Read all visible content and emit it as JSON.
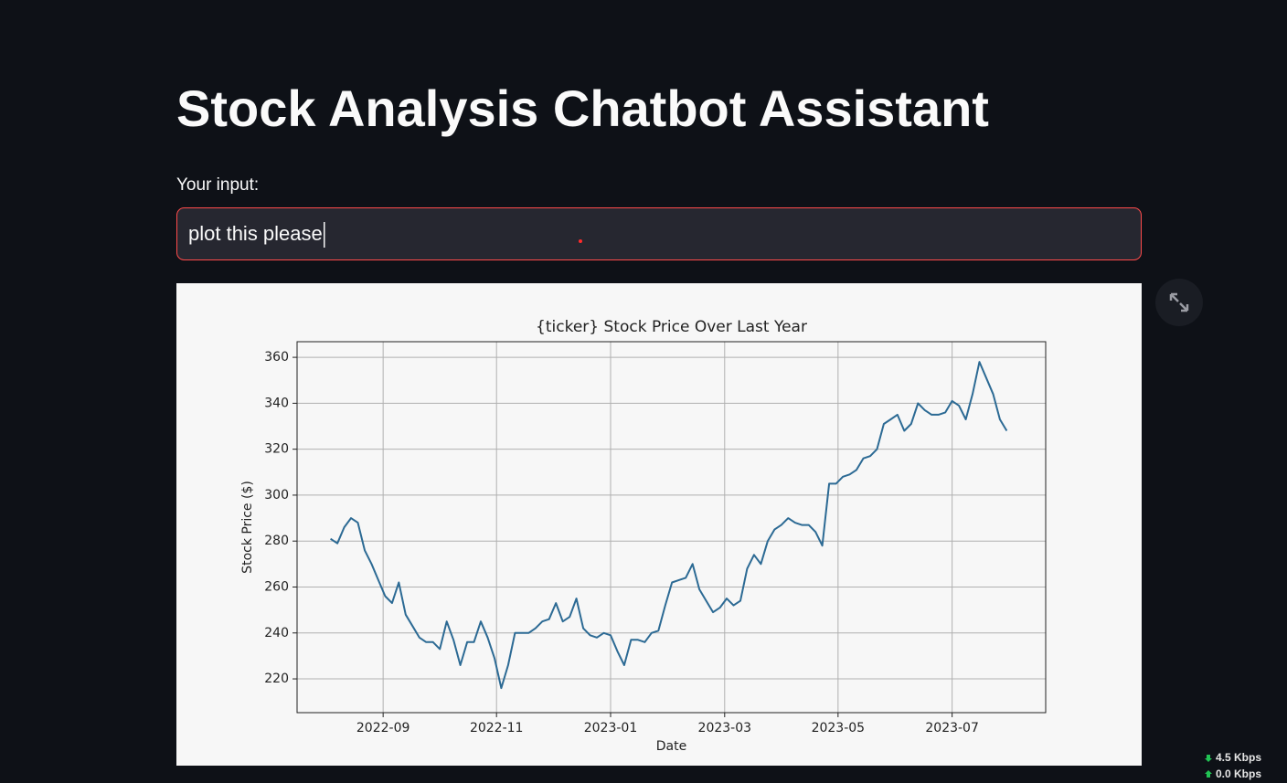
{
  "header": {
    "title": "Stock Analysis Chatbot Assistant"
  },
  "input": {
    "label": "Your input:",
    "value": "plot this please"
  },
  "network": {
    "down": "4.5 Kbps",
    "up": "0.0 Kbps"
  },
  "chart_data": {
    "type": "line",
    "title": "{ticker} Stock Price Over Last Year",
    "x_label": "Date",
    "y_label": "Stock Price ($)",
    "x": [
      2022.59,
      2022.6,
      2022.61,
      2022.62,
      2022.63,
      2022.64,
      2022.65,
      2022.66,
      2022.67,
      2022.68,
      2022.69,
      2022.7,
      2022.71,
      2022.72,
      2022.73,
      2022.74,
      2022.75,
      2022.76,
      2022.77,
      2022.78,
      2022.79,
      2022.8,
      2022.81,
      2022.82,
      2022.83,
      2022.84,
      2022.85,
      2022.86,
      2022.87,
      2022.88,
      2022.89,
      2022.9,
      2022.91,
      2022.92,
      2022.93,
      2022.94,
      2022.95,
      2022.96,
      2022.97,
      2022.98,
      2022.99,
      2023.0,
      2023.01,
      2023.02,
      2023.03,
      2023.04,
      2023.05,
      2023.06,
      2023.07,
      2023.08,
      2023.09,
      2023.1,
      2023.11,
      2023.12,
      2023.13,
      2023.14,
      2023.15,
      2023.16,
      2023.17,
      2023.18,
      2023.19,
      2023.2,
      2023.21,
      2023.22,
      2023.23,
      2023.24,
      2023.25,
      2023.26,
      2023.27,
      2023.28,
      2023.29,
      2023.3,
      2023.31,
      2023.32,
      2023.33,
      2023.34,
      2023.35,
      2023.36,
      2023.37,
      2023.38,
      2023.39,
      2023.4,
      2023.41,
      2023.42,
      2023.43,
      2023.44,
      2023.45,
      2023.46,
      2023.47,
      2023.48,
      2023.49,
      2023.5,
      2023.51,
      2023.52,
      2023.53,
      2023.54,
      2023.55,
      2023.56,
      2023.57,
      2023.58
    ],
    "values": [
      281,
      279,
      286,
      290,
      288,
      276,
      270,
      263,
      256,
      253,
      262,
      248,
      243,
      238,
      236,
      236,
      233,
      245,
      237,
      226,
      236,
      236,
      245,
      238,
      229,
      216,
      226,
      240,
      240,
      240,
      242,
      245,
      246,
      253,
      245,
      247,
      255,
      242,
      239,
      238,
      240,
      239,
      232,
      226,
      237,
      237,
      236,
      240,
      241,
      252,
      262,
      263,
      264,
      270,
      259,
      254,
      249,
      251,
      255,
      252,
      254,
      268,
      274,
      270,
      280,
      285,
      287,
      290,
      288,
      287,
      287,
      284,
      278,
      305,
      305,
      308,
      309,
      311,
      316,
      317,
      320,
      331,
      333,
      335,
      328,
      331,
      340,
      337,
      335,
      335,
      336,
      341,
      339,
      333,
      344,
      358,
      351,
      344,
      333,
      328
    ],
    "color": "#2c6a94",
    "xlim": [
      2022.541,
      2023.637
    ],
    "xticks": [
      {
        "value": 2022.667,
        "label": "2022-09"
      },
      {
        "value": 2022.833,
        "label": "2022-11"
      },
      {
        "value": 2023.0,
        "label": "2023-01"
      },
      {
        "value": 2023.167,
        "label": "2023-03"
      },
      {
        "value": 2023.333,
        "label": "2023-05"
      },
      {
        "value": 2023.5,
        "label": "2023-07"
      }
    ],
    "ylim": [
      205.3,
      366.8
    ],
    "yticks": [
      220,
      240,
      260,
      280,
      300,
      320,
      340,
      360
    ],
    "grid": true
  }
}
